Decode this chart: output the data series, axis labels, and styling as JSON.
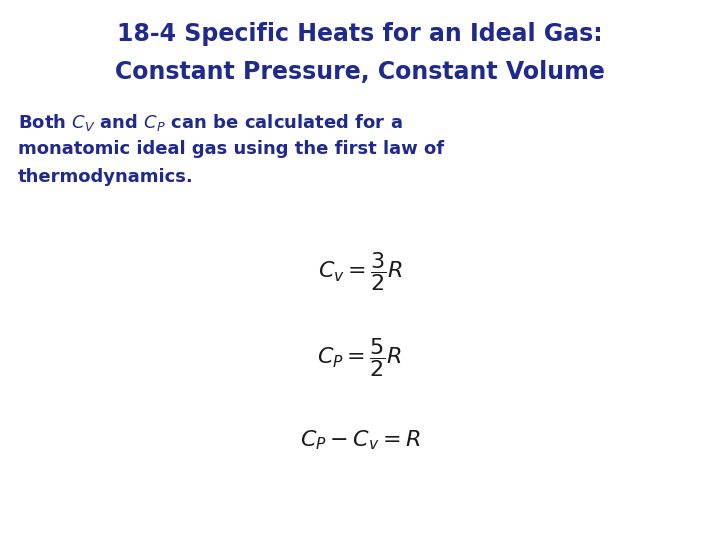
{
  "title_line1": "18-4 Specific Heats for an Ideal Gas:",
  "title_line2": "Constant Pressure, Constant Volume",
  "title_color": "#1f2a8c",
  "title_fontsize": 17,
  "body_text_color": "#1f2a8c",
  "body_fontsize": 13,
  "formula_color": "#1a1a1a",
  "formula_fontsize": 16,
  "background_color": "#ffffff"
}
